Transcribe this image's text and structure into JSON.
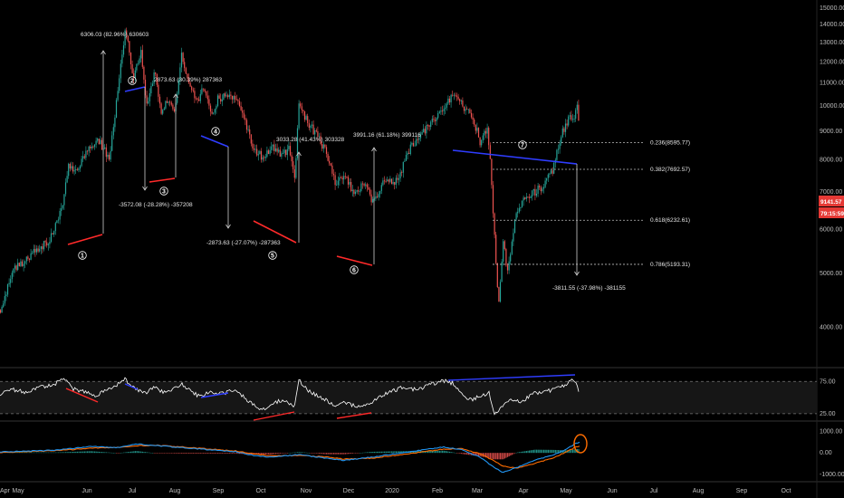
{
  "colors": {
    "background": "#000000",
    "bull": "#26a69a",
    "bear": "#ef5350",
    "blue_line": "#2f3dff",
    "red_line": "#ff2a2a",
    "rsi": "#ffffff",
    "macd": "#2196f3",
    "signal": "#ff6d00",
    "price_tag": "#e53935",
    "circle": "#ff6d00"
  },
  "chart_data": [
    {
      "type": "candlestick",
      "name": "price",
      "scale": "log",
      "ylim": [
        3400,
        15500
      ],
      "y_ticks": [
        "15000.00",
        "14000.00",
        "13000.00",
        "12000.00",
        "11000.00",
        "10000.00",
        "9000.00",
        "8000.00",
        "7000.00",
        "6000.00",
        "5000.00",
        "4000.00"
      ],
      "x_ticks": [
        "Apr",
        "May",
        "Jun",
        "Jul",
        "Aug",
        "Sep",
        "Oct",
        "Nov",
        "Dec",
        "2020",
        "Feb",
        "Mar",
        "Apr",
        "May",
        "Jun",
        "Jul",
        "Aug",
        "Sep",
        "Oct"
      ],
      "price_tags": [
        "9141.57",
        "79:15:59"
      ],
      "path_points": [
        [
          0,
          4300
        ],
        [
          15,
          5100
        ],
        [
          28,
          5300
        ],
        [
          40,
          5500
        ],
        [
          55,
          5750
        ],
        [
          68,
          6600
        ],
        [
          75,
          7800
        ],
        [
          85,
          7600
        ],
        [
          95,
          8300
        ],
        [
          108,
          8700
        ],
        [
          120,
          8000
        ],
        [
          130,
          10600
        ],
        [
          138,
          13850
        ],
        [
          146,
          11200
        ],
        [
          155,
          12500
        ],
        [
          162,
          9800
        ],
        [
          170,
          11600
        ],
        [
          178,
          9700
        ],
        [
          185,
          10300
        ],
        [
          193,
          9900
        ],
        [
          200,
          12250
        ],
        [
          210,
          10800
        ],
        [
          218,
          10100
        ],
        [
          225,
          10900
        ],
        [
          232,
          9600
        ],
        [
          240,
          10300
        ],
        [
          250,
          10500
        ],
        [
          262,
          10200
        ],
        [
          272,
          9200
        ],
        [
          280,
          8300
        ],
        [
          290,
          8100
        ],
        [
          300,
          8500
        ],
        [
          310,
          8100
        ],
        [
          318,
          8400
        ],
        [
          325,
          7400
        ],
        [
          330,
          10250
        ],
        [
          338,
          9400
        ],
        [
          350,
          8800
        ],
        [
          360,
          8200
        ],
        [
          370,
          7200
        ],
        [
          380,
          7500
        ],
        [
          392,
          6900
        ],
        [
          400,
          7300
        ],
        [
          412,
          6700
        ],
        [
          420,
          7200
        ],
        [
          430,
          7300
        ],
        [
          440,
          7300
        ],
        [
          448,
          8200
        ],
        [
          460,
          8700
        ],
        [
          470,
          9100
        ],
        [
          480,
          9500
        ],
        [
          490,
          10000
        ],
        [
          500,
          10480
        ],
        [
          510,
          10000
        ],
        [
          520,
          9700
        ],
        [
          530,
          8600
        ],
        [
          538,
          9200
        ],
        [
          545,
          6000
        ],
        [
          550,
          4300
        ],
        [
          555,
          5700
        ],
        [
          560,
          5000
        ],
        [
          570,
          6500
        ],
        [
          580,
          6800
        ],
        [
          590,
          7000
        ],
        [
          600,
          7200
        ],
        [
          610,
          7700
        ],
        [
          620,
          8900
        ],
        [
          628,
          9600
        ],
        [
          632,
          9500
        ],
        [
          637,
          9900
        ],
        [
          640,
          8600
        ]
      ],
      "annotations": [
        {
          "text": "6306.03 (82.96%) 630603"
        },
        {
          "text": "2873.63 (30.39%) 287363"
        },
        {
          "text": "-3572.08 (-28.28%) -357208"
        },
        {
          "text": "3033.28 (41.43%) 303328"
        },
        {
          "text": "3991.16 (61.18%) 399116"
        },
        {
          "text": "-2873.63 (-27.07%) -287363"
        },
        {
          "text": "-3811.55 (-37.98%) -381155"
        }
      ],
      "fib_levels": [
        {
          "label": "0.236(8595.77)",
          "price": 8595.77
        },
        {
          "label": "0.382(7692.57)",
          "price": 7692.57
        },
        {
          "label": "0.618(6232.61)",
          "price": 6232.61
        },
        {
          "label": "0.786(5193.31)",
          "price": 5193.31
        }
      ],
      "wave_labels": [
        "1",
        "2",
        "3",
        "4",
        "5",
        "6",
        "7"
      ]
    },
    {
      "type": "line",
      "name": "rsi",
      "ylim": [
        15,
        95
      ],
      "y_ticks": [
        "75.00",
        "25.00"
      ],
      "band": [
        25,
        75
      ],
      "path_points": [
        [
          0,
          55
        ],
        [
          15,
          62
        ],
        [
          30,
          58
        ],
        [
          45,
          66
        ],
        [
          60,
          70
        ],
        [
          70,
          80
        ],
        [
          80,
          64
        ],
        [
          95,
          58
        ],
        [
          105,
          52
        ],
        [
          115,
          60
        ],
        [
          125,
          66
        ],
        [
          138,
          78
        ],
        [
          150,
          64
        ],
        [
          160,
          56
        ],
        [
          170,
          66
        ],
        [
          180,
          58
        ],
        [
          190,
          62
        ],
        [
          200,
          72
        ],
        [
          210,
          60
        ],
        [
          220,
          52
        ],
        [
          230,
          58
        ],
        [
          245,
          56
        ],
        [
          260,
          62
        ],
        [
          270,
          50
        ],
        [
          280,
          38
        ],
        [
          290,
          30
        ],
        [
          300,
          42
        ],
        [
          315,
          46
        ],
        [
          325,
          36
        ],
        [
          330,
          78
        ],
        [
          340,
          60
        ],
        [
          350,
          54
        ],
        [
          360,
          46
        ],
        [
          370,
          36
        ],
        [
          380,
          42
        ],
        [
          395,
          36
        ],
        [
          410,
          42
        ],
        [
          420,
          52
        ],
        [
          430,
          58
        ],
        [
          445,
          66
        ],
        [
          460,
          62
        ],
        [
          475,
          70
        ],
        [
          490,
          76
        ],
        [
          500,
          72
        ],
        [
          510,
          56
        ],
        [
          520,
          46
        ],
        [
          530,
          52
        ],
        [
          540,
          58
        ],
        [
          545,
          26
        ],
        [
          550,
          30
        ],
        [
          560,
          46
        ],
        [
          575,
          44
        ],
        [
          590,
          56
        ],
        [
          605,
          60
        ],
        [
          620,
          66
        ],
        [
          632,
          78
        ],
        [
          637,
          72
        ],
        [
          640,
          52
        ]
      ]
    },
    {
      "type": "bar+line",
      "name": "macd",
      "ylim": [
        -1300,
        1400
      ],
      "y_ticks": [
        "1000.00",
        "0.00",
        "-1000.00"
      ],
      "macd_points": [
        [
          0,
          50
        ],
        [
          60,
          120
        ],
        [
          100,
          300
        ],
        [
          130,
          250
        ],
        [
          150,
          420
        ],
        [
          170,
          350
        ],
        [
          200,
          250
        ],
        [
          230,
          150
        ],
        [
          260,
          60
        ],
        [
          280,
          -120
        ],
        [
          300,
          -200
        ],
        [
          330,
          -80
        ],
        [
          360,
          -250
        ],
        [
          380,
          -350
        ],
        [
          410,
          -200
        ],
        [
          430,
          -80
        ],
        [
          460,
          100
        ],
        [
          490,
          280
        ],
        [
          510,
          150
        ],
        [
          530,
          -200
        ],
        [
          545,
          -650
        ],
        [
          555,
          -900
        ],
        [
          570,
          -700
        ],
        [
          590,
          -350
        ],
        [
          610,
          -100
        ],
        [
          625,
          150
        ],
        [
          637,
          480
        ]
      ],
      "signal_points": [
        [
          0,
          20
        ],
        [
          60,
          100
        ],
        [
          100,
          220
        ],
        [
          130,
          260
        ],
        [
          150,
          330
        ],
        [
          170,
          360
        ],
        [
          200,
          280
        ],
        [
          230,
          180
        ],
        [
          260,
          90
        ],
        [
          280,
          -40
        ],
        [
          300,
          -140
        ],
        [
          330,
          -120
        ],
        [
          360,
          -190
        ],
        [
          380,
          -290
        ],
        [
          410,
          -250
        ],
        [
          430,
          -150
        ],
        [
          460,
          10
        ],
        [
          490,
          180
        ],
        [
          510,
          200
        ],
        [
          530,
          -40
        ],
        [
          545,
          -350
        ],
        [
          555,
          -600
        ],
        [
          570,
          -720
        ],
        [
          590,
          -500
        ],
        [
          610,
          -240
        ],
        [
          625,
          30
        ],
        [
          637,
          300
        ]
      ]
    }
  ]
}
